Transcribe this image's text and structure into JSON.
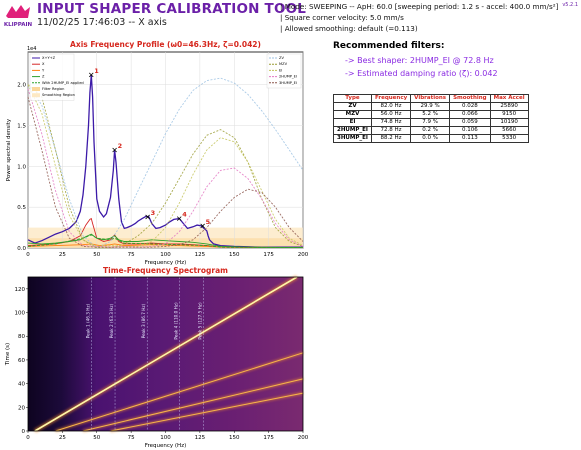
{
  "header": {
    "title": "INPUT SHAPER CALIBRATION TOOL",
    "subtitle": "11/02/25 17:46:03 -- X axis",
    "logo_text": "KLIPPAIN",
    "version": "v5.2.1",
    "meta": [
      "| Mode: SWEEPING -- ApH: 60.0 [sweeping period: 1.2 s - accel: 400.0 mm/s²]",
      "| Square corner velocity: 5.0 mm/s",
      "| Allowed smoothing: default (=0.113)"
    ]
  },
  "recommendations": {
    "title": "Recommended filters:",
    "lines": [
      "-> Best shaper: 2HUMP_EI @ 72.8 Hz",
      "-> Estimated damping ratio (ζ): 0.042"
    ]
  },
  "shaper_table": {
    "headers": [
      "Type",
      "Frequency",
      "Vibrations",
      "Smoothing",
      "Max Accel"
    ],
    "rows": [
      [
        "ZV",
        "82.0 Hz",
        "29.9 %",
        "0.028",
        "25890"
      ],
      [
        "MZV",
        "56.0 Hz",
        "5.2 %",
        "0.066",
        "9150"
      ],
      [
        "EI",
        "74.8 Hz",
        "7.9 %",
        "0.059",
        "10190"
      ],
      [
        "2HUMP_EI",
        "72.8 Hz",
        "0.2 %",
        "0.106",
        "5660"
      ],
      [
        "3HUMP_EI",
        "88.2 Hz",
        "0.0 %",
        "0.113",
        "5330"
      ]
    ]
  },
  "chart_data": [
    {
      "type": "line",
      "title": "Axis Frequency Profile (ω0=46.3Hz, ζ=0.042)",
      "xlabel": "Frequency (Hz)",
      "ylabel": "Power spectral density",
      "y_exponent": "1e4",
      "xlim": [
        0,
        200
      ],
      "ylim": [
        0,
        2.4
      ],
      "xticks": [
        0,
        25,
        50,
        75,
        100,
        125,
        150,
        175,
        200
      ],
      "yticks": [
        0.0,
        0.5,
        1.0,
        1.5,
        2.0
      ],
      "grid": true,
      "legend_left": [
        "X+Y+Z",
        "X",
        "Y",
        "Z",
        "With 2HUMP_EI applied",
        "Filter Region",
        "Smoothing Region"
      ],
      "legend_right": [
        "ZV",
        "MZV",
        "EI",
        "2HUMP_EI",
        "3HUMP_EI"
      ],
      "peaks": [
        {
          "label": "1",
          "x": 46,
          "y": 2.12
        },
        {
          "label": "2",
          "x": 63,
          "y": 1.2
        },
        {
          "label": "3",
          "x": 87,
          "y": 0.38
        },
        {
          "label": "4",
          "x": 110,
          "y": 0.36
        },
        {
          "label": "5",
          "x": 127,
          "y": 0.27
        }
      ],
      "series": [
        {
          "name": "X+Y+Z",
          "color": "#3c1aa8",
          "x": [
            0,
            5,
            10,
            15,
            20,
            25,
            30,
            35,
            38,
            40,
            42,
            44,
            45,
            46,
            47,
            48,
            50,
            52,
            55,
            57,
            60,
            62,
            63,
            64,
            66,
            68,
            70,
            72,
            75,
            78,
            80,
            83,
            86,
            88,
            90,
            93,
            96,
            100,
            103,
            106,
            110,
            113,
            116,
            120,
            123,
            126,
            128,
            130,
            131,
            132,
            135,
            140,
            150,
            160,
            170,
            180,
            190,
            200
          ],
          "y": [
            0.1,
            0.06,
            0.09,
            0.13,
            0.17,
            0.2,
            0.24,
            0.32,
            0.45,
            0.65,
            1.0,
            1.5,
            1.9,
            2.12,
            1.85,
            1.3,
            0.6,
            0.45,
            0.38,
            0.42,
            0.62,
            0.95,
            1.2,
            1.05,
            0.6,
            0.32,
            0.24,
            0.25,
            0.27,
            0.3,
            0.33,
            0.36,
            0.39,
            0.38,
            0.3,
            0.24,
            0.25,
            0.28,
            0.32,
            0.35,
            0.36,
            0.3,
            0.24,
            0.26,
            0.28,
            0.27,
            0.24,
            0.21,
            0.15,
            0.1,
            0.05,
            0.03,
            0.02,
            0.015,
            0.01,
            0.01,
            0.01,
            0.01
          ]
        },
        {
          "name": "X",
          "color": "#d62728",
          "x": [
            0,
            10,
            20,
            30,
            38,
            42,
            45,
            46,
            47,
            50,
            55,
            60,
            63,
            66,
            70,
            80,
            90,
            100,
            110,
            120,
            130,
            140,
            160,
            200
          ],
          "y": [
            0.03,
            0.04,
            0.05,
            0.08,
            0.15,
            0.28,
            0.35,
            0.36,
            0.3,
            0.12,
            0.08,
            0.1,
            0.16,
            0.08,
            0.05,
            0.05,
            0.06,
            0.05,
            0.05,
            0.04,
            0.03,
            0.01,
            0.005,
            0.005
          ]
        },
        {
          "name": "Y",
          "color": "#ff7f0e",
          "x": [
            0,
            20,
            40,
            46,
            52,
            60,
            63,
            70,
            90,
            110,
            130,
            140,
            200
          ],
          "y": [
            0.02,
            0.03,
            0.04,
            0.05,
            0.03,
            0.04,
            0.05,
            0.03,
            0.04,
            0.03,
            0.02,
            0.01,
            0.005
          ]
        },
        {
          "name": "Z",
          "color": "#2ca02c",
          "x": [
            0,
            10,
            20,
            30,
            38,
            42,
            46,
            50,
            55,
            60,
            63,
            66,
            70,
            80,
            90,
            100,
            110,
            120,
            130,
            140,
            160,
            200
          ],
          "y": [
            0.06,
            0.05,
            0.06,
            0.08,
            0.1,
            0.14,
            0.17,
            0.12,
            0.1,
            0.12,
            0.15,
            0.1,
            0.08,
            0.08,
            0.1,
            0.09,
            0.08,
            0.07,
            0.05,
            0.02,
            0.01,
            0.005
          ]
        },
        {
          "name": "With 2HUMP_EI applied",
          "color": "#2ca02c",
          "x": [
            0,
            20,
            40,
            46,
            50,
            60,
            63,
            70,
            90,
            110,
            130,
            140,
            200
          ],
          "y": [
            0.02,
            0.05,
            0.12,
            0.16,
            0.12,
            0.1,
            0.12,
            0.06,
            0.05,
            0.04,
            0.03,
            0.01,
            0.005
          ]
        },
        {
          "name": "ZV",
          "color": "#9cc2e3",
          "x": [
            0,
            10,
            20,
            30,
            40,
            50,
            60,
            70,
            80,
            90,
            100,
            110,
            120,
            130,
            140,
            150,
            160,
            170,
            180,
            190,
            200
          ],
          "y": [
            2.0,
            1.75,
            1.2,
            0.6,
            0.15,
            0.0,
            0.08,
            0.35,
            0.7,
            1.05,
            1.4,
            1.7,
            1.93,
            2.05,
            2.08,
            2.02,
            1.88,
            1.68,
            1.45,
            1.2,
            0.95
          ]
        },
        {
          "name": "MZV",
          "color": "#9a9c33",
          "x": [
            0,
            10,
            20,
            30,
            40,
            50,
            60,
            70,
            80,
            90,
            100,
            110,
            120,
            130,
            140,
            150,
            160,
            170,
            180,
            190,
            200
          ],
          "y": [
            2.0,
            1.85,
            1.2,
            0.5,
            0.1,
            0.0,
            0.0,
            0.05,
            0.15,
            0.3,
            0.55,
            0.85,
            1.15,
            1.38,
            1.45,
            1.35,
            1.05,
            0.6,
            0.25,
            0.08,
            0.02
          ]
        },
        {
          "name": "EI",
          "color": "#c4c45a",
          "x": [
            0,
            10,
            20,
            30,
            40,
            50,
            60,
            70,
            80,
            90,
            100,
            110,
            120,
            130,
            140,
            150,
            160,
            170,
            180,
            190,
            200
          ],
          "y": [
            2.0,
            1.65,
            1.0,
            0.4,
            0.1,
            0.02,
            0.03,
            0.02,
            0.02,
            0.08,
            0.25,
            0.55,
            0.9,
            1.2,
            1.35,
            1.3,
            1.05,
            0.7,
            0.35,
            0.12,
            0.03
          ]
        },
        {
          "name": "2HUMP_EI",
          "color": "#e377c2",
          "x": [
            0,
            10,
            20,
            30,
            40,
            50,
            60,
            70,
            80,
            90,
            100,
            110,
            120,
            130,
            140,
            150,
            160,
            170,
            180,
            190,
            200
          ],
          "y": [
            1.95,
            1.4,
            0.7,
            0.2,
            0.03,
            0.02,
            0.01,
            0.02,
            0.01,
            0.02,
            0.05,
            0.2,
            0.45,
            0.75,
            0.95,
            0.98,
            0.85,
            0.6,
            0.3,
            0.1,
            0.02
          ]
        },
        {
          "name": "3HUMP_EI",
          "color": "#8c564b",
          "x": [
            0,
            10,
            20,
            30,
            40,
            50,
            60,
            70,
            80,
            90,
            100,
            110,
            120,
            130,
            140,
            150,
            160,
            170,
            180,
            190,
            200
          ],
          "y": [
            1.85,
            1.2,
            0.5,
            0.12,
            0.02,
            0.01,
            0.01,
            0.01,
            0.01,
            0.01,
            0.02,
            0.04,
            0.1,
            0.25,
            0.45,
            0.62,
            0.72,
            0.68,
            0.5,
            0.25,
            0.08
          ]
        }
      ]
    },
    {
      "type": "heatmap",
      "title": "Time-Frequency Spectrogram",
      "xlabel": "Frequency (Hz)",
      "ylabel": "Time (s)",
      "xlim": [
        0,
        200
      ],
      "ylim": [
        0,
        130
      ],
      "xticks": [
        0,
        25,
        50,
        75,
        100,
        125,
        150,
        175,
        200
      ],
      "yticks": [
        0,
        20,
        40,
        60,
        80,
        100,
        120
      ],
      "peak_lines": [
        {
          "label": "Peak 1 (46.3 Hz)",
          "x": 46.3
        },
        {
          "label": "Peak 2 (63.3 Hz)",
          "x": 63.3
        },
        {
          "label": "Peak 3 (86.7 Hz)",
          "x": 86.7
        },
        {
          "label": "Peak 4 (110.0 Hz)",
          "x": 110.0
        },
        {
          "label": "Peak 5 (127.5 Hz)",
          "x": 127.5
        }
      ],
      "bright_traces": [
        {
          "x": [
            5,
            200
          ],
          "y": [
            0,
            133
          ]
        },
        {
          "x": [
            20,
            200
          ],
          "y": [
            0,
            66
          ]
        },
        {
          "x": [
            40,
            200
          ],
          "y": [
            0,
            44
          ]
        },
        {
          "x": [
            60,
            200
          ],
          "y": [
            0,
            32
          ]
        }
      ]
    }
  ]
}
